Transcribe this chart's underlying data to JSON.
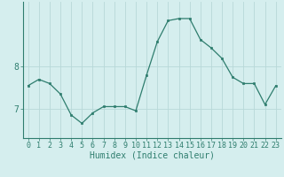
{
  "x": [
    0,
    1,
    2,
    3,
    4,
    5,
    6,
    7,
    8,
    9,
    10,
    11,
    12,
    13,
    14,
    15,
    16,
    17,
    18,
    19,
    20,
    21,
    22,
    23
  ],
  "y": [
    7.55,
    7.7,
    7.6,
    7.35,
    6.85,
    6.65,
    6.9,
    7.05,
    7.05,
    7.05,
    6.95,
    7.8,
    8.6,
    9.1,
    9.15,
    9.15,
    8.65,
    8.45,
    8.2,
    7.75,
    7.6,
    7.6,
    7.1,
    7.55
  ],
  "line_color": "#2e7d6e",
  "marker_color": "#2e7d6e",
  "bg_color": "#d5eeee",
  "grid_color": "#b8d8d8",
  "xlabel": "Humidex (Indice chaleur)",
  "xlim": [
    -0.5,
    23.5
  ],
  "ylim": [
    6.3,
    9.55
  ],
  "yticks": [
    7,
    8
  ],
  "xticks": [
    0,
    1,
    2,
    3,
    4,
    5,
    6,
    7,
    8,
    9,
    10,
    11,
    12,
    13,
    14,
    15,
    16,
    17,
    18,
    19,
    20,
    21,
    22,
    23
  ],
  "tick_color": "#2e7d6e",
  "label_fontsize": 7,
  "tick_fontsize": 6,
  "ytick_fontsize": 7
}
